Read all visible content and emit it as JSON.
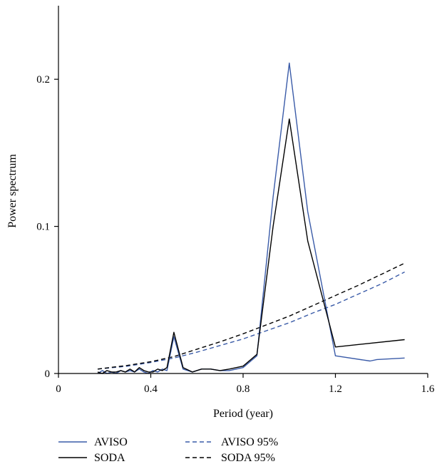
{
  "chart_data": {
    "type": "line",
    "title": "",
    "xlabel": "Period (year)",
    "ylabel": "Power spectrum",
    "xlim": [
      0,
      1.6
    ],
    "ylim": [
      0,
      0.25
    ],
    "xticks": [
      0,
      0.4,
      0.8,
      1.2,
      1.6
    ],
    "xtick_labels": [
      "0",
      "0.4",
      "0.8",
      "1.2",
      "1.6"
    ],
    "yticks": [
      0,
      0.1,
      0.2
    ],
    "ytick_labels": [
      "0",
      "0.1",
      "0.2"
    ],
    "grid": false,
    "legend_position": "bottom",
    "series": [
      {
        "name": "AVISO",
        "color": "#3a5ba8",
        "dash": "solid",
        "x": [
          0.17,
          0.19,
          0.21,
          0.23,
          0.25,
          0.27,
          0.29,
          0.31,
          0.33,
          0.35,
          0.37,
          0.39,
          0.41,
          0.43,
          0.45,
          0.47,
          0.5,
          0.54,
          0.58,
          0.62,
          0.66,
          0.7,
          0.74,
          0.8,
          0.86,
          0.93,
          1.0,
          1.08,
          1.2,
          1.35,
          1.38,
          1.5
        ],
        "y": [
          0.0,
          0.002,
          0.0,
          0.001,
          0.0,
          0.002,
          0.001,
          0.002,
          0.001,
          0.003,
          0.001,
          0.0,
          0.002,
          0.001,
          0.003,
          0.002,
          0.025,
          0.003,
          0.001,
          0.003,
          0.003,
          0.002,
          0.002,
          0.004,
          0.012,
          0.12,
          0.211,
          0.11,
          0.012,
          0.0085,
          0.0095,
          0.0105
        ]
      },
      {
        "name": "SODA",
        "color": "#000000",
        "dash": "solid",
        "x": [
          0.17,
          0.19,
          0.21,
          0.23,
          0.25,
          0.27,
          0.29,
          0.31,
          0.33,
          0.35,
          0.37,
          0.39,
          0.41,
          0.43,
          0.45,
          0.47,
          0.5,
          0.54,
          0.58,
          0.62,
          0.66,
          0.7,
          0.74,
          0.8,
          0.86,
          0.93,
          1.0,
          1.08,
          1.2,
          1.5
        ],
        "y": [
          0.001,
          0.0,
          0.002,
          0.001,
          0.001,
          0.002,
          0.001,
          0.003,
          0.001,
          0.004,
          0.002,
          0.001,
          0.001,
          0.003,
          0.002,
          0.004,
          0.028,
          0.004,
          0.001,
          0.003,
          0.003,
          0.002,
          0.003,
          0.005,
          0.013,
          0.1,
          0.173,
          0.09,
          0.018,
          0.023
        ]
      },
      {
        "name": "AVISO 95%",
        "color": "#3a5ba8",
        "dash": "dashed",
        "x": [
          0.17,
          0.3,
          0.4,
          0.5,
          0.6,
          0.7,
          0.8,
          0.9,
          1.0,
          1.1,
          1.2,
          1.3,
          1.4,
          1.5
        ],
        "y": [
          0.003,
          0.005,
          0.0075,
          0.0105,
          0.0145,
          0.019,
          0.0235,
          0.029,
          0.0345,
          0.041,
          0.047,
          0.054,
          0.061,
          0.069
        ]
      },
      {
        "name": "SODA 95%",
        "color": "#000000",
        "dash": "dashed",
        "x": [
          0.17,
          0.3,
          0.4,
          0.5,
          0.6,
          0.7,
          0.8,
          0.9,
          1.0,
          1.1,
          1.2,
          1.3,
          1.4,
          1.5
        ],
        "y": [
          0.003,
          0.0055,
          0.008,
          0.0115,
          0.0165,
          0.0215,
          0.027,
          0.033,
          0.039,
          0.046,
          0.053,
          0.06,
          0.0675,
          0.075
        ]
      }
    ],
    "legend_order": [
      0,
      2,
      1,
      3
    ]
  }
}
